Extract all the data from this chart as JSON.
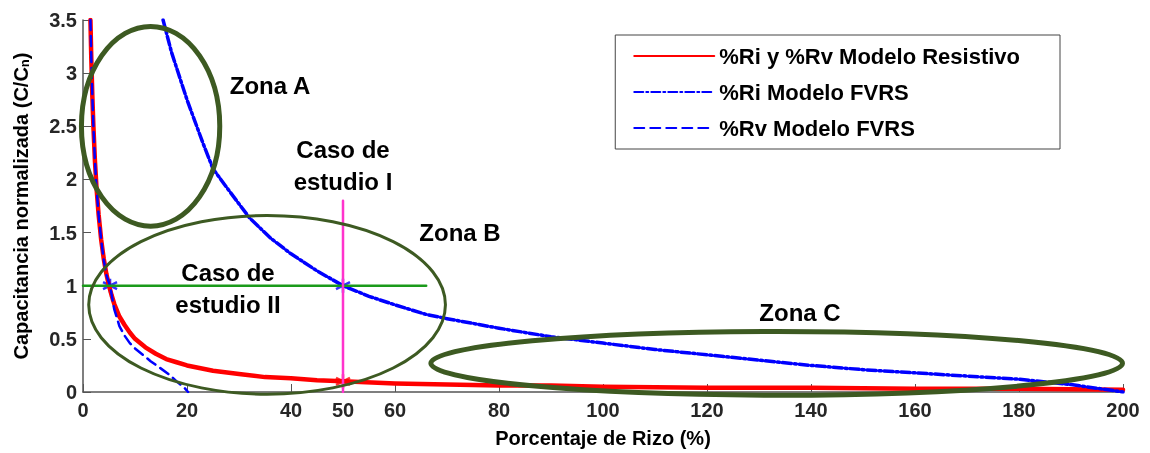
{
  "chart_data": {
    "type": "line",
    "xlabel": "Porcentaje de Rizo (%)",
    "ylabel": "Capacitancia normalizada (C/C$_{n}$)",
    "xlim": [
      0,
      200
    ],
    "xticks": [
      0,
      20,
      40,
      50,
      60,
      80,
      100,
      120,
      140,
      160,
      180,
      200
    ],
    "ylim": [
      0,
      3.5
    ],
    "yticks": [
      0,
      0.5,
      1,
      1.5,
      2,
      2.5,
      3,
      3.5
    ],
    "grid": false,
    "legend": "top right",
    "marker": "none",
    "series": [
      {
        "name": "%Ri y %Rv Modelo Resistivo",
        "color": "#ff0000",
        "line_style": "solid",
        "x": [
          1.43,
          1.6,
          1.8,
          2,
          2.3,
          2.6,
          3,
          3.5,
          4,
          4.5,
          5,
          5.5,
          6,
          7,
          8,
          9,
          10,
          12,
          14,
          16,
          18,
          20,
          25,
          30,
          35,
          40,
          45,
          50,
          60,
          70,
          80,
          90,
          100,
          120,
          140,
          160,
          180,
          200
        ],
        "values": [
          3.5,
          3.13,
          2.78,
          2.5,
          2.17,
          1.92,
          1.67,
          1.43,
          1.25,
          1.11,
          1.0,
          0.91,
          0.83,
          0.71,
          0.63,
          0.56,
          0.5,
          0.42,
          0.36,
          0.31,
          0.28,
          0.25,
          0.2,
          0.17,
          0.14,
          0.13,
          0.11,
          0.1,
          0.08,
          0.07,
          0.06,
          0.06,
          0.05,
          0.04,
          0.04,
          0.03,
          0.03,
          0.02
        ]
      },
      {
        "name": "%Ri Modelo FVRS",
        "color": "#0000ff",
        "line_style": "dashdot",
        "x": [
          15.4,
          17,
          20,
          23,
          25,
          28,
          32,
          36,
          40,
          45,
          50,
          55,
          60,
          66,
          70,
          80,
          90,
          100,
          110,
          120,
          130,
          140,
          150,
          160,
          170,
          180,
          190,
          200
        ],
        "values": [
          3.5,
          3.2,
          2.75,
          2.35,
          2.1,
          1.9,
          1.64,
          1.45,
          1.3,
          1.14,
          1.0,
          0.9,
          0.82,
          0.73,
          0.69,
          0.6,
          0.52,
          0.46,
          0.4,
          0.35,
          0.3,
          0.25,
          0.21,
          0.18,
          0.15,
          0.12,
          0.07,
          0
        ]
      },
      {
        "name": "%Rv Modelo FVRS",
        "color": "#0000ff",
        "line_style": "dashed",
        "x": [
          1.43,
          1.6,
          1.8,
          2,
          2.3,
          2.6,
          3,
          3.5,
          4,
          4.5,
          5.2,
          6,
          7,
          8,
          9,
          10,
          11.5,
          13,
          15,
          16.7,
          18,
          19.5,
          20.2
        ],
        "values": [
          3.5,
          3.13,
          2.78,
          2.5,
          2.17,
          1.92,
          1.67,
          1.43,
          1.24,
          1.1,
          1.0,
          0.78,
          0.62,
          0.53,
          0.46,
          0.41,
          0.35,
          0.29,
          0.22,
          0.16,
          0.1,
          0.04,
          0
        ]
      },
      {
        "color": "#1a9a1a",
        "line_style": "solid",
        "x": [
          0,
          66
        ],
        "values": [
          1,
          1
        ]
      },
      {
        "color": "#ff33cc",
        "line_style": "solid",
        "x": [
          50,
          50
        ],
        "values": [
          0,
          1.8
        ]
      },
      {
        "type": "scatter",
        "marker": "cross",
        "color": "#0000ff",
        "x": [
          5.2,
          50
        ],
        "values": [
          1,
          1
        ]
      },
      {
        "type": "scatter",
        "marker": "cross",
        "color": "#ff0000",
        "x": [
          50
        ],
        "values": [
          0.1
        ]
      }
    ],
    "annotations": [
      "Zona A",
      "Zona B",
      "Zona C",
      "Caso de\nestudio I",
      "Caso de\nestudio II"
    ]
  }
}
